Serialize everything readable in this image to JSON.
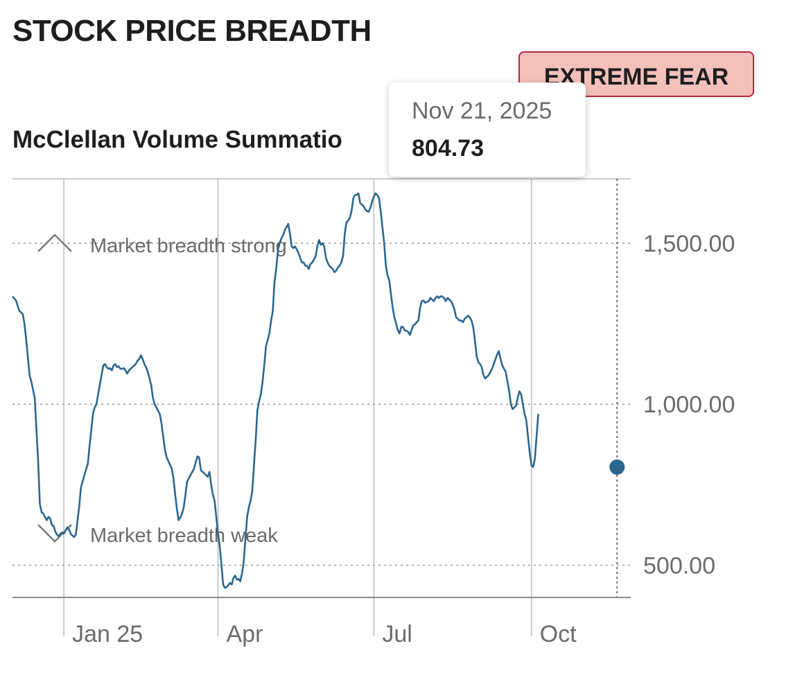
{
  "header": {
    "title": "STOCK PRICE BREADTH",
    "status_badge": "EXTREME FEAR"
  },
  "colors": {
    "line": "#2c6690",
    "badge_bg": "#f4c0ba",
    "badge_border": "#b0283c",
    "grid": "#bcbcbc",
    "text_muted": "#6b6b6b"
  },
  "tooltip": {
    "date": "Nov 21, 2025",
    "value": "804.73"
  },
  "chart_data": {
    "type": "line",
    "title": "McClellan Volume Summation Index",
    "subtitle_visible": "McClellan Volume Summatio",
    "xlabel": "",
    "ylabel": "",
    "ylim": [
      400,
      1700
    ],
    "yticks": [
      500,
      1000,
      1500
    ],
    "ytick_labels": [
      "500.00",
      "1,000.00",
      "1,500.00"
    ],
    "xticks": [
      {
        "label": "Jan 25",
        "day": 22
      },
      {
        "label": "Apr",
        "day": 112
      },
      {
        "label": "Jul",
        "day": 203
      },
      {
        "label": "Oct",
        "day": 295
      }
    ],
    "x_range_days": [
      -8,
      353
    ],
    "annotations": [
      {
        "text": "Market breadth strong",
        "value": 1500,
        "marker": "up-chevron"
      },
      {
        "text": "Market breadth weak",
        "value": 600,
        "marker": "down-chevron"
      }
    ],
    "highlight": {
      "date": "Nov 21, 2025",
      "day": 345,
      "value": 804.73
    },
    "series": [
      {
        "name": "McClellan Volume Summation Index",
        "points": [
          [
            -8,
            1335
          ],
          [
            -6,
            1323
          ],
          [
            -4,
            1290
          ],
          [
            -2,
            1280
          ],
          [
            -1,
            1250
          ],
          [
            0,
            1200
          ],
          [
            2,
            1090
          ],
          [
            3,
            1070
          ],
          [
            5,
            1020
          ],
          [
            6,
            920
          ],
          [
            7,
            820
          ],
          [
            8,
            690
          ],
          [
            9,
            665
          ],
          [
            10,
            660
          ],
          [
            11,
            650
          ],
          [
            12,
            640
          ],
          [
            13,
            650
          ],
          [
            14,
            645
          ],
          [
            15,
            625
          ],
          [
            16,
            622
          ],
          [
            17,
            605
          ],
          [
            18,
            595
          ],
          [
            19,
            590
          ],
          [
            20,
            598
          ],
          [
            21,
            602
          ],
          [
            22,
            598
          ],
          [
            23,
            608
          ],
          [
            24,
            618
          ],
          [
            25,
            612
          ],
          [
            26,
            598
          ],
          [
            27,
            592
          ],
          [
            28,
            588
          ],
          [
            29,
            595
          ],
          [
            30,
            640
          ],
          [
            31,
            685
          ],
          [
            32,
            742
          ],
          [
            34,
            780
          ],
          [
            36,
            815
          ],
          [
            37,
            870
          ],
          [
            38,
            920
          ],
          [
            39,
            970
          ],
          [
            40,
            990
          ],
          [
            41,
            1000
          ],
          [
            42,
            1030
          ],
          [
            43,
            1060
          ],
          [
            44,
            1090
          ],
          [
            45,
            1120
          ],
          [
            46,
            1125
          ],
          [
            47,
            1115
          ],
          [
            48,
            1110
          ],
          [
            49,
            1112
          ],
          [
            50,
            1105
          ],
          [
            51,
            1120
          ],
          [
            52,
            1125
          ],
          [
            53,
            1115
          ],
          [
            54,
            1118
          ],
          [
            55,
            1110
          ],
          [
            56,
            1110
          ],
          [
            57,
            1112
          ],
          [
            58,
            1105
          ],
          [
            59,
            1095
          ],
          [
            60,
            1105
          ],
          [
            61,
            1110
          ],
          [
            62,
            1115
          ],
          [
            63,
            1120
          ],
          [
            64,
            1125
          ],
          [
            65,
            1135
          ],
          [
            66,
            1140
          ],
          [
            67,
            1152
          ],
          [
            68,
            1140
          ],
          [
            69,
            1125
          ],
          [
            70,
            1115
          ],
          [
            71,
            1100
          ],
          [
            72,
            1080
          ],
          [
            73,
            1060
          ],
          [
            74,
            1020
          ],
          [
            75,
            1000
          ],
          [
            76,
            990
          ],
          [
            77,
            980
          ],
          [
            78,
            970
          ],
          [
            79,
            940
          ],
          [
            80,
            900
          ],
          [
            81,
            860
          ],
          [
            82,
            835
          ],
          [
            84,
            812
          ],
          [
            85,
            800
          ],
          [
            86,
            770
          ],
          [
            87,
            720
          ],
          [
            88,
            675
          ],
          [
            89,
            640
          ],
          [
            90,
            648
          ],
          [
            91,
            660
          ],
          [
            92,
            680
          ],
          [
            93,
            720
          ],
          [
            94,
            760
          ],
          [
            95,
            770
          ],
          [
            96,
            780
          ],
          [
            97,
            790
          ],
          [
            98,
            800
          ],
          [
            99,
            820
          ],
          [
            100,
            838
          ],
          [
            101,
            835
          ],
          [
            102,
            795
          ],
          [
            103,
            790
          ],
          [
            104,
            785
          ],
          [
            105,
            780
          ],
          [
            106,
            775
          ],
          [
            107,
            790
          ],
          [
            108,
            750
          ],
          [
            109,
            720
          ],
          [
            110,
            700
          ],
          [
            111,
            650
          ],
          [
            112,
            600
          ],
          [
            113,
            560
          ],
          [
            114,
            500
          ],
          [
            115,
            440
          ],
          [
            116,
            430
          ],
          [
            117,
            432
          ],
          [
            118,
            438
          ],
          [
            119,
            445
          ],
          [
            120,
            440
          ],
          [
            121,
            460
          ],
          [
            122,
            468
          ],
          [
            123,
            455
          ],
          [
            124,
            458
          ],
          [
            125,
            450
          ],
          [
            126,
            475
          ],
          [
            127,
            510
          ],
          [
            128,
            580
          ],
          [
            129,
            650
          ],
          [
            130,
            680
          ],
          [
            131,
            700
          ],
          [
            132,
            730
          ],
          [
            133,
            810
          ],
          [
            134,
            890
          ],
          [
            135,
            980
          ],
          [
            136,
            1010
          ],
          [
            137,
            1030
          ],
          [
            138,
            1070
          ],
          [
            139,
            1120
          ],
          [
            140,
            1180
          ],
          [
            141,
            1200
          ],
          [
            142,
            1220
          ],
          [
            143,
            1260
          ],
          [
            144,
            1290
          ],
          [
            145,
            1380
          ],
          [
            146,
            1420
          ],
          [
            147,
            1480
          ],
          [
            148,
            1500
          ],
          [
            149,
            1515
          ],
          [
            150,
            1525
          ],
          [
            151,
            1540
          ],
          [
            152,
            1550
          ],
          [
            153,
            1560
          ],
          [
            154,
            1530
          ],
          [
            155,
            1490
          ],
          [
            156,
            1485
          ],
          [
            157,
            1490
          ],
          [
            158,
            1480
          ],
          [
            159,
            1470
          ],
          [
            160,
            1455
          ],
          [
            161,
            1440
          ],
          [
            162,
            1440
          ],
          [
            163,
            1430
          ],
          [
            164,
            1430
          ],
          [
            165,
            1420
          ],
          [
            166,
            1435
          ],
          [
            167,
            1440
          ],
          [
            168,
            1450
          ],
          [
            169,
            1460
          ],
          [
            170,
            1490
          ],
          [
            171,
            1510
          ],
          [
            172,
            1495
          ],
          [
            173,
            1500
          ],
          [
            174,
            1490
          ],
          [
            175,
            1455
          ],
          [
            176,
            1440
          ],
          [
            177,
            1430
          ],
          [
            178,
            1425
          ],
          [
            179,
            1420
          ],
          [
            180,
            1410
          ],
          [
            181,
            1415
          ],
          [
            182,
            1425
          ],
          [
            183,
            1430
          ],
          [
            184,
            1440
          ],
          [
            185,
            1460
          ],
          [
            186,
            1530
          ],
          [
            187,
            1565
          ],
          [
            188,
            1570
          ],
          [
            189,
            1580
          ],
          [
            190,
            1600
          ],
          [
            191,
            1640
          ],
          [
            192,
            1650
          ],
          [
            193,
            1650
          ],
          [
            194,
            1655
          ],
          [
            195,
            1625
          ],
          [
            196,
            1620
          ],
          [
            197,
            1615
          ],
          [
            198,
            1605
          ],
          [
            199,
            1600
          ],
          [
            200,
            1598
          ],
          [
            201,
            1610
          ],
          [
            202,
            1630
          ],
          [
            203,
            1645
          ],
          [
            204,
            1655
          ],
          [
            205,
            1650
          ],
          [
            206,
            1640
          ],
          [
            207,
            1600
          ],
          [
            208,
            1550
          ],
          [
            209,
            1500
          ],
          [
            210,
            1430
          ],
          [
            211,
            1400
          ],
          [
            212,
            1385
          ],
          [
            213,
            1340
          ],
          [
            214,
            1300
          ],
          [
            215,
            1270
          ],
          [
            216,
            1250
          ],
          [
            217,
            1230
          ],
          [
            218,
            1220
          ],
          [
            219,
            1240
          ],
          [
            220,
            1240
          ],
          [
            221,
            1230
          ],
          [
            222,
            1228
          ],
          [
            223,
            1225
          ],
          [
            224,
            1215
          ],
          [
            225,
            1230
          ],
          [
            226,
            1245
          ],
          [
            227,
            1248
          ],
          [
            228,
            1255
          ],
          [
            229,
            1260
          ],
          [
            230,
            1300
          ],
          [
            231,
            1320
          ],
          [
            232,
            1322
          ],
          [
            233,
            1315
          ],
          [
            234,
            1318
          ],
          [
            235,
            1320
          ],
          [
            236,
            1330
          ],
          [
            237,
            1325
          ],
          [
            238,
            1320
          ],
          [
            239,
            1330
          ],
          [
            240,
            1335
          ],
          [
            241,
            1330
          ],
          [
            242,
            1335
          ],
          [
            243,
            1335
          ],
          [
            244,
            1330
          ],
          [
            245,
            1320
          ],
          [
            246,
            1330
          ],
          [
            247,
            1325
          ],
          [
            248,
            1320
          ],
          [
            249,
            1310
          ],
          [
            250,
            1295
          ],
          [
            251,
            1270
          ],
          [
            252,
            1265
          ],
          [
            253,
            1260
          ],
          [
            254,
            1260
          ],
          [
            255,
            1255
          ],
          [
            256,
            1265
          ],
          [
            257,
            1270
          ],
          [
            258,
            1275
          ],
          [
            259,
            1270
          ],
          [
            260,
            1260
          ],
          [
            261,
            1240
          ],
          [
            262,
            1200
          ],
          [
            263,
            1150
          ],
          [
            264,
            1130
          ],
          [
            265,
            1125
          ],
          [
            266,
            1115
          ],
          [
            267,
            1090
          ],
          [
            268,
            1080
          ],
          [
            269,
            1085
          ],
          [
            270,
            1090
          ],
          [
            271,
            1100
          ],
          [
            272,
            1110
          ],
          [
            273,
            1125
          ],
          [
            274,
            1140
          ],
          [
            275,
            1155
          ],
          [
            276,
            1165
          ],
          [
            277,
            1140
          ],
          [
            278,
            1120
          ],
          [
            279,
            1110
          ],
          [
            280,
            1100
          ],
          [
            281,
            1070
          ],
          [
            282,
            1040
          ],
          [
            283,
            1000
          ],
          [
            284,
            985
          ],
          [
            285,
            990
          ],
          [
            286,
            995
          ],
          [
            287,
            1020
          ],
          [
            288,
            1040
          ],
          [
            289,
            1030
          ],
          [
            290,
            1000
          ],
          [
            291,
            970
          ],
          [
            292,
            950
          ],
          [
            293,
            900
          ],
          [
            294,
            850
          ],
          [
            295,
            810
          ],
          [
            296,
            805
          ],
          [
            297,
            830
          ],
          [
            298,
            900
          ],
          [
            299,
            970
          ]
        ]
      }
    ]
  }
}
